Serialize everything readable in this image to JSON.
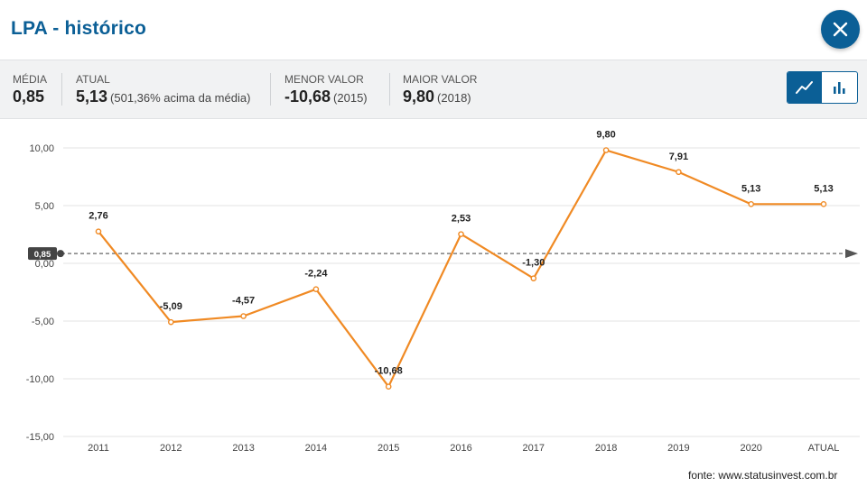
{
  "header": {
    "title": "LPA - histórico"
  },
  "stats": {
    "media": {
      "label": "MÉDIA",
      "value": "0,85"
    },
    "atual": {
      "label": "ATUAL",
      "value": "5,13",
      "note": "(501,36% acima da média)"
    },
    "menor": {
      "label": "MENOR VALOR",
      "value": "-10,68",
      "note": "(2015)"
    },
    "maior": {
      "label": "MAIOR VALOR",
      "value": "9,80",
      "note": "(2018)"
    }
  },
  "view_toggle": {
    "selected": "line",
    "icons": [
      "line-chart-icon",
      "bar-chart-icon"
    ]
  },
  "colors": {
    "brand": "#0b5f96",
    "line": "#f08a24",
    "grid": "#e3e3e3"
  },
  "chart_data": {
    "type": "line",
    "categories": [
      "2011",
      "2012",
      "2013",
      "2014",
      "2015",
      "2016",
      "2017",
      "2018",
      "2019",
      "2020",
      "ATUAL"
    ],
    "series": [
      {
        "values": [
          2.76,
          -5.09,
          -4.57,
          -2.24,
          -10.68,
          2.53,
          -1.3,
          9.8,
          7.91,
          5.13,
          5.13
        ]
      }
    ],
    "data_labels": [
      "2,76",
      "-5,09",
      "-4,57",
      "-2,24",
      "-10,68",
      "2,53",
      "-1,30",
      "9,80",
      "7,91",
      "5,13",
      "5,13"
    ],
    "yticks": [
      10,
      5,
      0,
      -5,
      -10,
      -15
    ],
    "ytick_labels": [
      "10,00",
      "5,00",
      "0,00",
      "-5,00",
      "-10,00",
      "-15,00"
    ],
    "ylim": [
      -15,
      10
    ],
    "average": {
      "value": 0.85,
      "label": "0,85"
    },
    "grid": true
  },
  "source": "fonte: www.statusinvest.com.br"
}
